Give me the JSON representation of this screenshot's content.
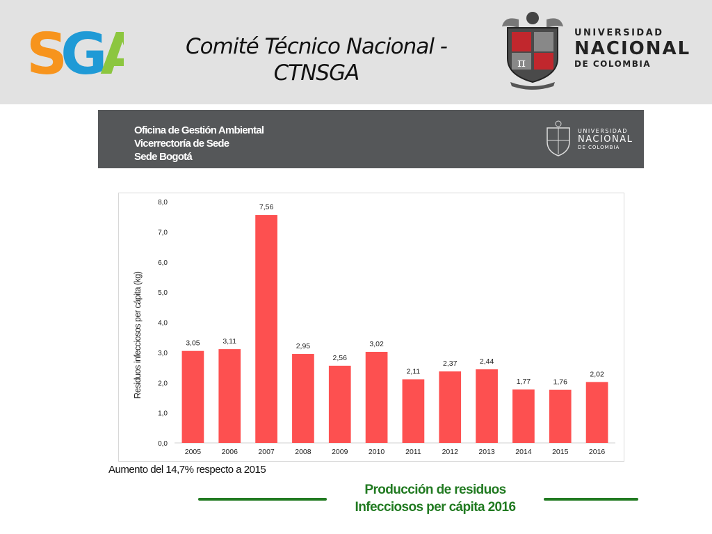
{
  "header": {
    "logo_text": "SGA",
    "title_line1": "Comité Técnico Nacional -",
    "title_line2": "CTNSGA",
    "university": {
      "line1": "UNIVERSIDAD",
      "line2": "NACIONAL",
      "line3": "DE COLOMBIA"
    }
  },
  "office_bar": {
    "line1": "Oficina de Gestión Ambiental",
    "line2": "Vicerrectoría de Sede",
    "line3": "Sede Bogotá",
    "logo": {
      "line1": "UNIVERSIDAD",
      "line2": "NACIONAL",
      "line3": "DE COLOMBIA"
    }
  },
  "colors": {
    "bar": "#fd5050",
    "caption_green": "#217a21",
    "office_bar_bg": "#555759"
  },
  "chart_data": {
    "type": "bar",
    "categories": [
      "2005",
      "2006",
      "2007",
      "2008",
      "2009",
      "2010",
      "2011",
      "2012",
      "2013",
      "2014",
      "2015",
      "2016"
    ],
    "values": [
      3.05,
      3.11,
      7.56,
      2.95,
      2.56,
      3.02,
      2.11,
      2.37,
      2.44,
      1.77,
      1.76,
      2.02
    ],
    "data_labels": [
      "3,05",
      "3,11",
      "7,56",
      "2,95",
      "2,56",
      "3,02",
      "2,11",
      "2,37",
      "2,44",
      "1,77",
      "1,76",
      "2,02"
    ],
    "title": "",
    "xlabel": "",
    "ylabel": "Residuos infecciosos per cápita (kg)",
    "ylim": [
      0,
      8
    ],
    "yticks": [
      0,
      1,
      2,
      3,
      4,
      5,
      6,
      7,
      8
    ],
    "ytick_labels": [
      "0,0",
      "1,0",
      "2,0",
      "3,0",
      "4,0",
      "5,0",
      "6,0",
      "7,0",
      "8,0"
    ],
    "grid": false,
    "legend": "none"
  },
  "note": "Aumento del 14,7% respecto a 2015",
  "caption": {
    "line1": "Producción de residuos",
    "line2": "Infecciosos per cápita 2016"
  }
}
